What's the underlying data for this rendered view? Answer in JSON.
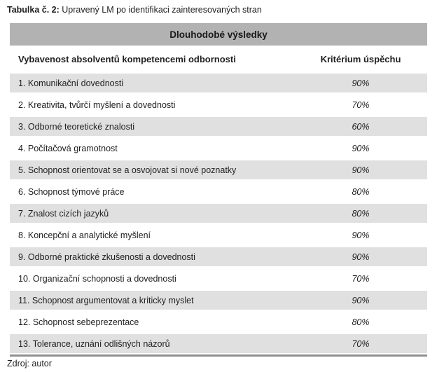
{
  "caption": {
    "prefix": "Tabulka č. 2:",
    "rest": " Upravený LM po identifikaci zainteresovaných stran"
  },
  "table": {
    "header": "Dlouhodobé výsledky",
    "columns": [
      "Vybavenost absolventů kompetencemi odbornosti",
      "Kritérium úspěchu"
    ],
    "rows": [
      {
        "label": "1. Komunikační dovednosti",
        "value": "90%"
      },
      {
        "label": "2. Kreativita, tvůrčí myšlení a dovednosti",
        "value": "70%"
      },
      {
        "label": "3. Odborné teoretické znalosti",
        "value": "60%"
      },
      {
        "label": "4. Počítačová gramotnost",
        "value": "90%"
      },
      {
        "label": "5. Schopnost orientovat se a osvojovat si nové poznatky",
        "value": "90%"
      },
      {
        "label": "6. Schopnost týmové práce",
        "value": "80%"
      },
      {
        "label": "7. Znalost cizích jazyků",
        "value": "80%"
      },
      {
        "label": "8. Koncepční a analytické myšlení",
        "value": "90%"
      },
      {
        "label": "9. Odborné praktické zkušenosti a dovednosti",
        "value": "90%"
      },
      {
        "label": "10. Organizační schopnosti a dovednosti",
        "value": "70%"
      },
      {
        "label": "11. Schopnost argumentovat a kriticky myslet",
        "value": "90%"
      },
      {
        "label": "12. Schopnost sebeprezentace",
        "value": "80%"
      },
      {
        "label": "13. Tolerance, uznání odlišných názorů",
        "value": "70%"
      }
    ]
  },
  "footer": "Zdroj: autor",
  "colors": {
    "header_bg": "#b2b2b2",
    "stripe_bg": "#e0e0e0",
    "bottom_border": "#8f8f8f",
    "text": "#1f1f1f"
  }
}
